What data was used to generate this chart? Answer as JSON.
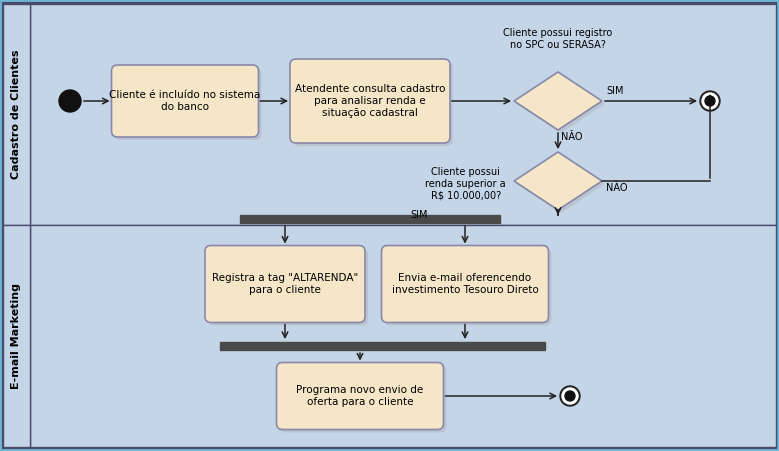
{
  "bg_outer": "#6ab4d4",
  "bg_swim_top": "#c5d5e8",
  "bg_swim_bottom": "#c5d5e8",
  "swim_line_color": "#4a4a6a",
  "box_fill": "#f5e6c8",
  "box_edge": "#8888aa",
  "diamond_fill": "#f5e6c8",
  "diamond_edge": "#8888aa",
  "bar_color": "#4a4a4a",
  "arrow_color": "#222222",
  "end_circle_fill": "#ffffff",
  "end_circle_edge": "#222222",
  "end_circle_inner": "#111111",
  "start_circle_fill": "#111111",
  "text_color": "#000000",
  "label_swim_top": "Cadastro de Clientes",
  "label_swim_bottom": "E-mail Marketing",
  "box1_text": "Cliente é incluído no sistema\ndo banco",
  "box2_text": "Atendente consulta cadastro\npara analisar renda e\nsituação cadastral",
  "box3_text": "Registra a tag \"ALTARENDA\"\npara o cliente",
  "box4_text": "Envia e-mail oferencendo\ninvestimento Tesouro Direto",
  "box5_text": "Programa novo envio de\noferta para o cliente",
  "diamond1_label": "Cliente possui registro\nno SPC ou SERASA?",
  "diamond2_label": "Cliente possui\nrenda superior a\nR$ 10.000,00?",
  "d1_yes": "SIM",
  "d1_no": "NÃO",
  "d2_yes": "SIM",
  "d2_no": "NÃO",
  "font_size_box": 7.5,
  "font_size_swim": 8,
  "font_size_label": 7
}
